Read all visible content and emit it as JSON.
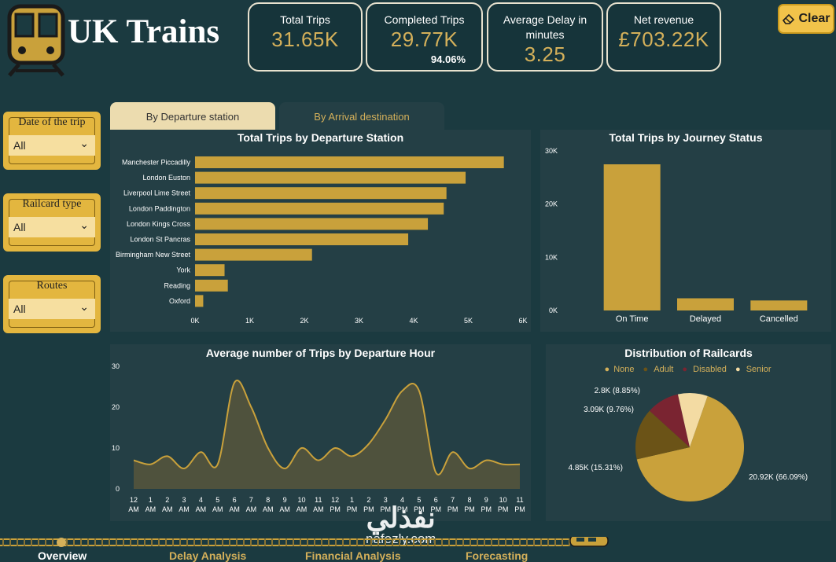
{
  "app": {
    "title": "UK Trains",
    "clear_label": "Clear"
  },
  "kpis": [
    {
      "label": "Total Trips",
      "value": "31.65K"
    },
    {
      "label": "Completed Trips",
      "value": "29.77K",
      "sub": "94.06%"
    },
    {
      "label": "Average Delay in minutes",
      "value": "3.25"
    },
    {
      "label": "Net revenue",
      "value": "£703.22K"
    }
  ],
  "filters": [
    {
      "label": "Date of the trip",
      "value": "All"
    },
    {
      "label": "Railcard type",
      "value": "All"
    },
    {
      "label": "Routes",
      "value": "All"
    }
  ],
  "tabs": [
    {
      "label": "By Departure station",
      "active": true
    },
    {
      "label": "By Arrival destination",
      "active": false
    }
  ],
  "colors": {
    "accent": "#c9a13b",
    "background": "#1b3a40",
    "panel": "#243f45"
  },
  "chart_data": [
    {
      "type": "bar",
      "orientation": "horizontal",
      "title": "Total Trips by Departure Station",
      "categories": [
        "Manchester Piccadilly",
        "London Euston",
        "Liverpool Lime Street",
        "London Paddington",
        "London Kings Cross",
        "London St Pancras",
        "Birmingham New Street",
        "York",
        "Reading",
        "Oxford"
      ],
      "values": [
        5650,
        4950,
        4600,
        4550,
        4260,
        3900,
        2140,
        540,
        600,
        150
      ],
      "xlim": [
        0,
        6000
      ],
      "xticks": [
        "0K",
        "1K",
        "2K",
        "3K",
        "4K",
        "5K",
        "6K"
      ]
    },
    {
      "type": "bar",
      "title": "Total Trips by Journey Status",
      "categories": [
        "On Time",
        "Delayed",
        "Cancelled"
      ],
      "values": [
        27480,
        2290,
        1880
      ],
      "ylim": [
        0,
        30000
      ],
      "yticks": [
        "0K",
        "10K",
        "20K",
        "30K"
      ]
    },
    {
      "type": "area",
      "title": "Average number of Trips by Departure Hour",
      "x": [
        "12 AM",
        "1 AM",
        "2 AM",
        "3 AM",
        "4 AM",
        "5 AM",
        "6 AM",
        "7 AM",
        "8 AM",
        "9 AM",
        "10 AM",
        "11 AM",
        "12 PM",
        "1 PM",
        "2 PM",
        "3 PM",
        "4 PM",
        "5 PM",
        "6 PM",
        "7 PM",
        "8 PM",
        "9 PM",
        "10 PM",
        "11 PM"
      ],
      "values": [
        7,
        6,
        8,
        5,
        9,
        6,
        26,
        20,
        10,
        5,
        10,
        7,
        10,
        8,
        11,
        17,
        24,
        24,
        4,
        9,
        5,
        7,
        6,
        6
      ],
      "ylim": [
        0,
        30
      ],
      "yticks": [
        "0",
        "10",
        "20",
        "30"
      ]
    },
    {
      "type": "pie",
      "title": "Distribution of Railcards",
      "legend": [
        "None",
        "Adult",
        "Disabled",
        "Senior"
      ],
      "slices": [
        {
          "name": "None",
          "value": 20920,
          "label": "20.92K (66.09%)",
          "color": "#c9a13b"
        },
        {
          "name": "Adult",
          "value": 4850,
          "label": "4.85K (15.31%)",
          "color": "#6b5317"
        },
        {
          "name": "Disabled",
          "value": 3090,
          "label": "3.09K (9.76%)",
          "color": "#7a2431"
        },
        {
          "name": "Senior",
          "value": 2800,
          "label": "2.8K (8.85%)",
          "color": "#f3dba3"
        }
      ]
    }
  ],
  "nav": {
    "pages": [
      "Overview",
      "Delay Analysis",
      "Financial Analysis",
      "Forecasting"
    ]
  },
  "watermark": {
    "arabic": "نفذلي",
    "latin": "nafezly.com"
  }
}
